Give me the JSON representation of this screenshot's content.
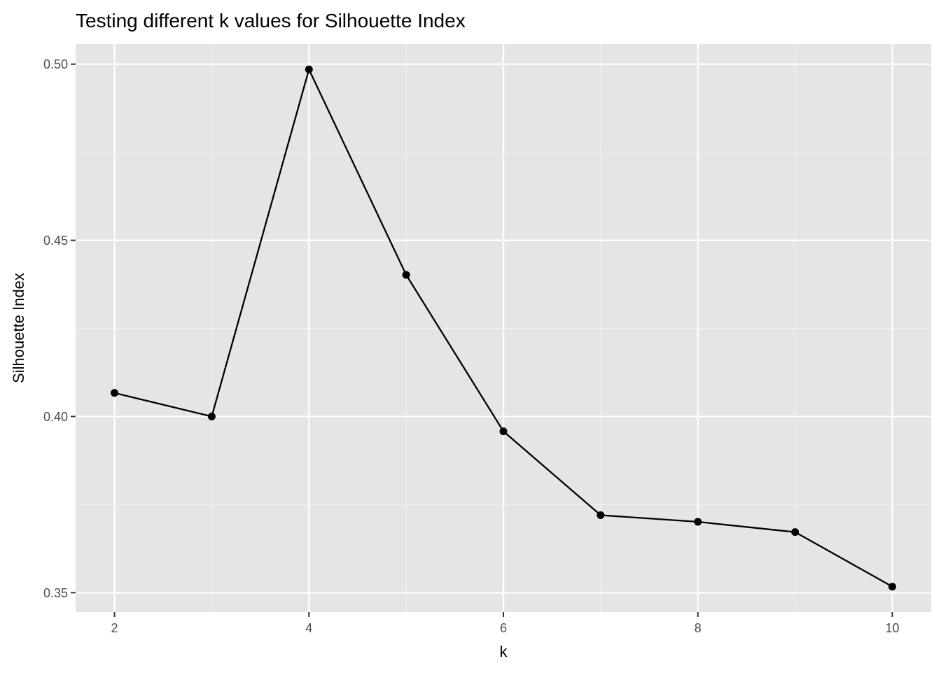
{
  "chart_data": {
    "type": "line",
    "title": "Testing different k values for Silhouette Index",
    "xlabel": "k",
    "ylabel": "Silhouette Index",
    "x": [
      2,
      3,
      4,
      5,
      6,
      7,
      8,
      9,
      10
    ],
    "series": [
      {
        "values": [
          0.4067,
          0.4,
          0.4985,
          0.4402,
          0.3958,
          0.372,
          0.3701,
          0.3672,
          0.3517
        ]
      }
    ],
    "xlim": [
      1.6,
      10.4
    ],
    "ylim": [
      0.3445,
      0.5057
    ],
    "x_ticks": [
      2,
      4,
      6,
      8,
      10
    ],
    "x_tick_labels": [
      "2",
      "4",
      "6",
      "8",
      "10"
    ],
    "x_minor_ticks": [
      3,
      5,
      7,
      9
    ],
    "y_ticks": [
      0.35,
      0.4,
      0.45,
      0.5
    ],
    "y_tick_labels": [
      "0.35",
      "0.40",
      "0.45",
      "0.50"
    ],
    "y_minor_ticks": [
      0.375,
      0.425,
      0.475
    ],
    "grid": true,
    "legend": "none",
    "colors": {
      "panel_background": "#e5e5e5",
      "grid_major": "#ffffff",
      "grid_minor": "#f2f2f2",
      "line": "#000000",
      "point": "#000000",
      "tick_text": "#4d4d4d",
      "tick_mark": "#333333"
    }
  }
}
